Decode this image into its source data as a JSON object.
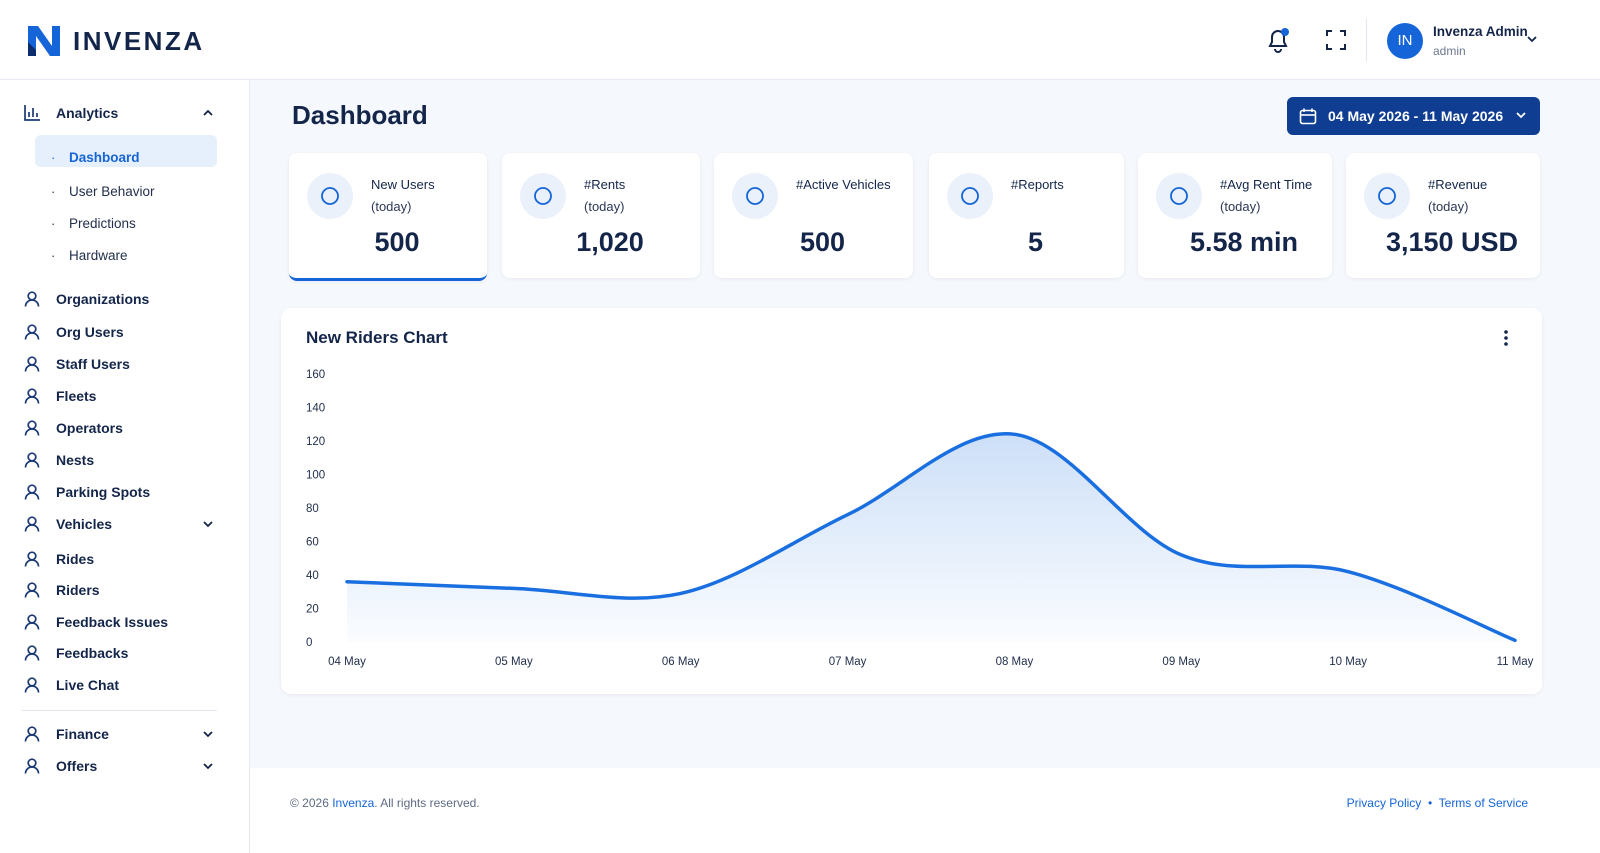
{
  "header": {
    "brand": "INVENZA",
    "user_name": "Invenza Admin",
    "user_role": "admin",
    "avatar": "IN"
  },
  "sidebar": {
    "analytics": {
      "label": "Analytics",
      "children": [
        "Dashboard",
        "User Behavior",
        "Predictions",
        "Hardware"
      ]
    },
    "items": [
      "Organizations",
      "Org Users",
      "Staff Users",
      "Fleets",
      "Operators",
      "Nests",
      "Parking Spots",
      "Vehicles",
      "Rides",
      "Riders",
      "Feedback Issues",
      "Feedbacks",
      "Live Chat"
    ],
    "bottom_items": [
      "Finance",
      "Offers"
    ]
  },
  "page": {
    "title": "Dashboard",
    "date_range": "04 May 2026 - 11 May 2026"
  },
  "cards": [
    {
      "label": "New Users",
      "sub": "(today)",
      "value": "500"
    },
    {
      "label": "#Rents",
      "sub": "(today)",
      "value": "1,020"
    },
    {
      "label": "#Active Vehicles",
      "value": "500"
    },
    {
      "label": "#Reports",
      "value": "5"
    },
    {
      "label": "#Avg Rent Time",
      "sub": "(today)",
      "value": "5.58 min"
    },
    {
      "label": "#Revenue",
      "sub": "(today)",
      "value": "3,150 USD"
    }
  ],
  "chart_data": {
    "type": "line",
    "title": "New Riders Chart",
    "categories": [
      "04 May",
      "05 May",
      "06 May",
      "07 May",
      "08 May",
      "09 May",
      "10 May",
      "11 May"
    ],
    "series": [
      {
        "name": "New Riders",
        "color": "#1a6fe0",
        "values": [
          36,
          32,
          29,
          76,
          124,
          52,
          42,
          1
        ]
      }
    ],
    "ylim": [
      0,
      160
    ],
    "yticks": [
      0,
      20,
      40,
      60,
      80,
      100,
      120,
      140,
      160
    ],
    "grid": false
  },
  "footer": {
    "copyright": "© 2026",
    "brand": "Invenza",
    "rights": ". All rights reserved.",
    "links": [
      "Privacy Policy",
      "Terms of Service"
    ]
  }
}
